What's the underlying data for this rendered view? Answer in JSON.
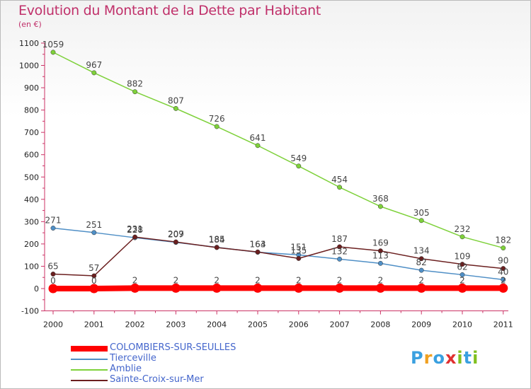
{
  "title": "Evolution du Montant de la Dette par Habitant",
  "subtitle": "(en €)",
  "logo_text": "Proxiti",
  "chart_data": {
    "type": "line",
    "title": "Evolution du Montant de la Dette par Habitant",
    "ylabel": "(en €)",
    "ylim": [
      -100,
      1100
    ],
    "yticks": [
      -100,
      0,
      100,
      200,
      300,
      400,
      500,
      600,
      700,
      800,
      900,
      1000,
      1100
    ],
    "x": [
      "2000",
      "2001",
      "2002",
      "2003",
      "2004",
      "2005",
      "2006",
      "2007",
      "2008",
      "2009",
      "2010",
      "2011"
    ],
    "grid": false,
    "legend_position": "bottom-left",
    "series": [
      {
        "name": "COLOMBIERS-SUR-SEULLES",
        "color": "#ff0000",
        "values": [
          0,
          0,
          2,
          2,
          2,
          2,
          2,
          2,
          2,
          2,
          2,
          2
        ]
      },
      {
        "name": "Tierceville",
        "color": "#4f8fc6",
        "values": [
          271,
          251,
          228,
          207,
          185,
          163,
          151,
          132,
          113,
          82,
          62,
          40
        ]
      },
      {
        "name": "Amblie",
        "color": "#7ed13a",
        "values": [
          1059,
          967,
          882,
          807,
          726,
          641,
          549,
          454,
          368,
          305,
          232,
          182
        ]
      },
      {
        "name": "Sainte-Croix-sur-Mer",
        "color": "#6b1f1f",
        "values": [
          65,
          57,
          231,
          209,
          184,
          164,
          135,
          187,
          169,
          134,
          109,
          90
        ]
      }
    ]
  }
}
